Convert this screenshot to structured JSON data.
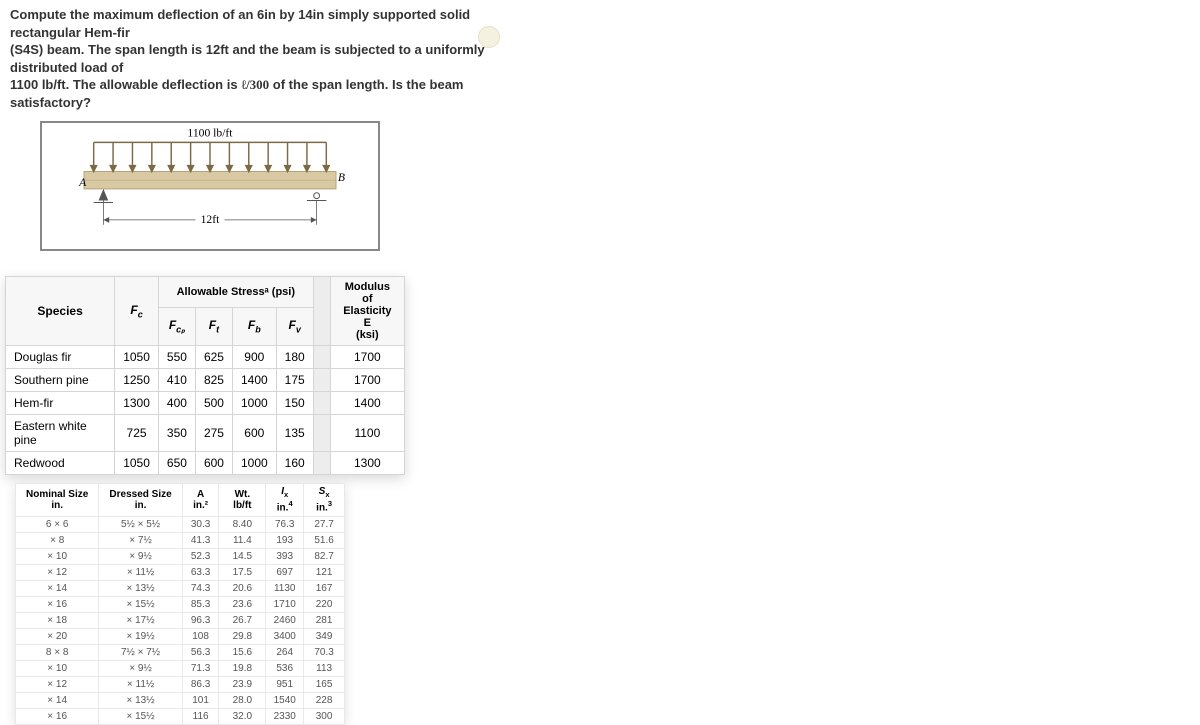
{
  "problem": {
    "line1": "Compute the maximum deflection of an 6in by 14in simply supported solid rectangular Hem-fir",
    "line2": "(S4S) beam. The span length is 12ft and the beam is subjected to a uniformly distributed load of",
    "line3_pre": "1100 lb/ft. The allowable deflection is ",
    "line3_frac": "ℓ/300",
    "line3_post": " of the span length. Is the beam satisfactory?"
  },
  "diagram": {
    "load_label": "1100 lb/ft",
    "span_label": "12ft",
    "left_label": "A",
    "right_label": "B",
    "beam_color": "#d9c9a3",
    "arrow_color": "#7a6a45",
    "support_color": "#555"
  },
  "species_table": {
    "group_header": "Allowable Stressᵃ (psi)",
    "e_header_top": "Modulus of",
    "e_header_mid": "Elasticity E",
    "e_header_bot": "(ksi)",
    "col_species": "Species",
    "col_fc": "F꜀",
    "col_fcp": "F꜀ₚ",
    "col_ft": "Fₜ",
    "col_fb": "F_b",
    "col_fv": "Fᵥ",
    "rows": [
      {
        "species": "Douglas fir",
        "fc": "1050",
        "fcp": "550",
        "ft": "625",
        "fb": "900",
        "fv": "180",
        "e": "1700"
      },
      {
        "species": "Southern pine",
        "fc": "1250",
        "fcp": "410",
        "ft": "825",
        "fb": "1400",
        "fv": "175",
        "e": "1700"
      },
      {
        "species": "Hem-fir",
        "fc": "1300",
        "fcp": "400",
        "ft": "500",
        "fb": "1000",
        "fv": "150",
        "e": "1400"
      },
      {
        "species": "Eastern white pine",
        "fc": "725",
        "fcp": "350",
        "ft": "275",
        "fb": "600",
        "fv": "135",
        "e": "1100"
      },
      {
        "species": "Redwood",
        "fc": "1050",
        "fcp": "650",
        "ft": "600",
        "fb": "1000",
        "fv": "160",
        "e": "1300"
      }
    ]
  },
  "prop_table": {
    "headers": {
      "nominal": "Nominal Size in.",
      "dressed": "Dressed Size in.",
      "area": "A in.²",
      "wt": "Wt. lb/ft",
      "ix": "Iₓ in.⁴",
      "sx": "Sₓ in.³"
    },
    "rows": [
      {
        "n": "6 × 6",
        "d": "5½ × 5½",
        "a": "30.3",
        "w": "8.40",
        "i": "76.3",
        "s": "27.7"
      },
      {
        "n": "× 8",
        "d": "× 7½",
        "a": "41.3",
        "w": "11.4",
        "i": "193",
        "s": "51.6"
      },
      {
        "n": "× 10",
        "d": "× 9½",
        "a": "52.3",
        "w": "14.5",
        "i": "393",
        "s": "82.7"
      },
      {
        "n": "× 12",
        "d": "× 11½",
        "a": "63.3",
        "w": "17.5",
        "i": "697",
        "s": "121"
      },
      {
        "n": "× 14",
        "d": "× 13½",
        "a": "74.3",
        "w": "20.6",
        "i": "1130",
        "s": "167"
      },
      {
        "n": "× 16",
        "d": "× 15½",
        "a": "85.3",
        "w": "23.6",
        "i": "1710",
        "s": "220"
      },
      {
        "n": "× 18",
        "d": "× 17½",
        "a": "96.3",
        "w": "26.7",
        "i": "2460",
        "s": "281"
      },
      {
        "n": "× 20",
        "d": "× 19½",
        "a": "108",
        "w": "29.8",
        "i": "3400",
        "s": "349"
      },
      {
        "n": "8 × 8",
        "d": "7½ × 7½",
        "a": "56.3",
        "w": "15.6",
        "i": "264",
        "s": "70.3"
      },
      {
        "n": "× 10",
        "d": "× 9½",
        "a": "71.3",
        "w": "19.8",
        "i": "536",
        "s": "113"
      },
      {
        "n": "× 12",
        "d": "× 11½",
        "a": "86.3",
        "w": "23.9",
        "i": "951",
        "s": "165"
      },
      {
        "n": "× 14",
        "d": "× 13½",
        "a": "101",
        "w": "28.0",
        "i": "1540",
        "s": "228"
      },
      {
        "n": "× 16",
        "d": "× 15½",
        "a": "116",
        "w": "32.0",
        "i": "2330",
        "s": "300"
      }
    ]
  }
}
